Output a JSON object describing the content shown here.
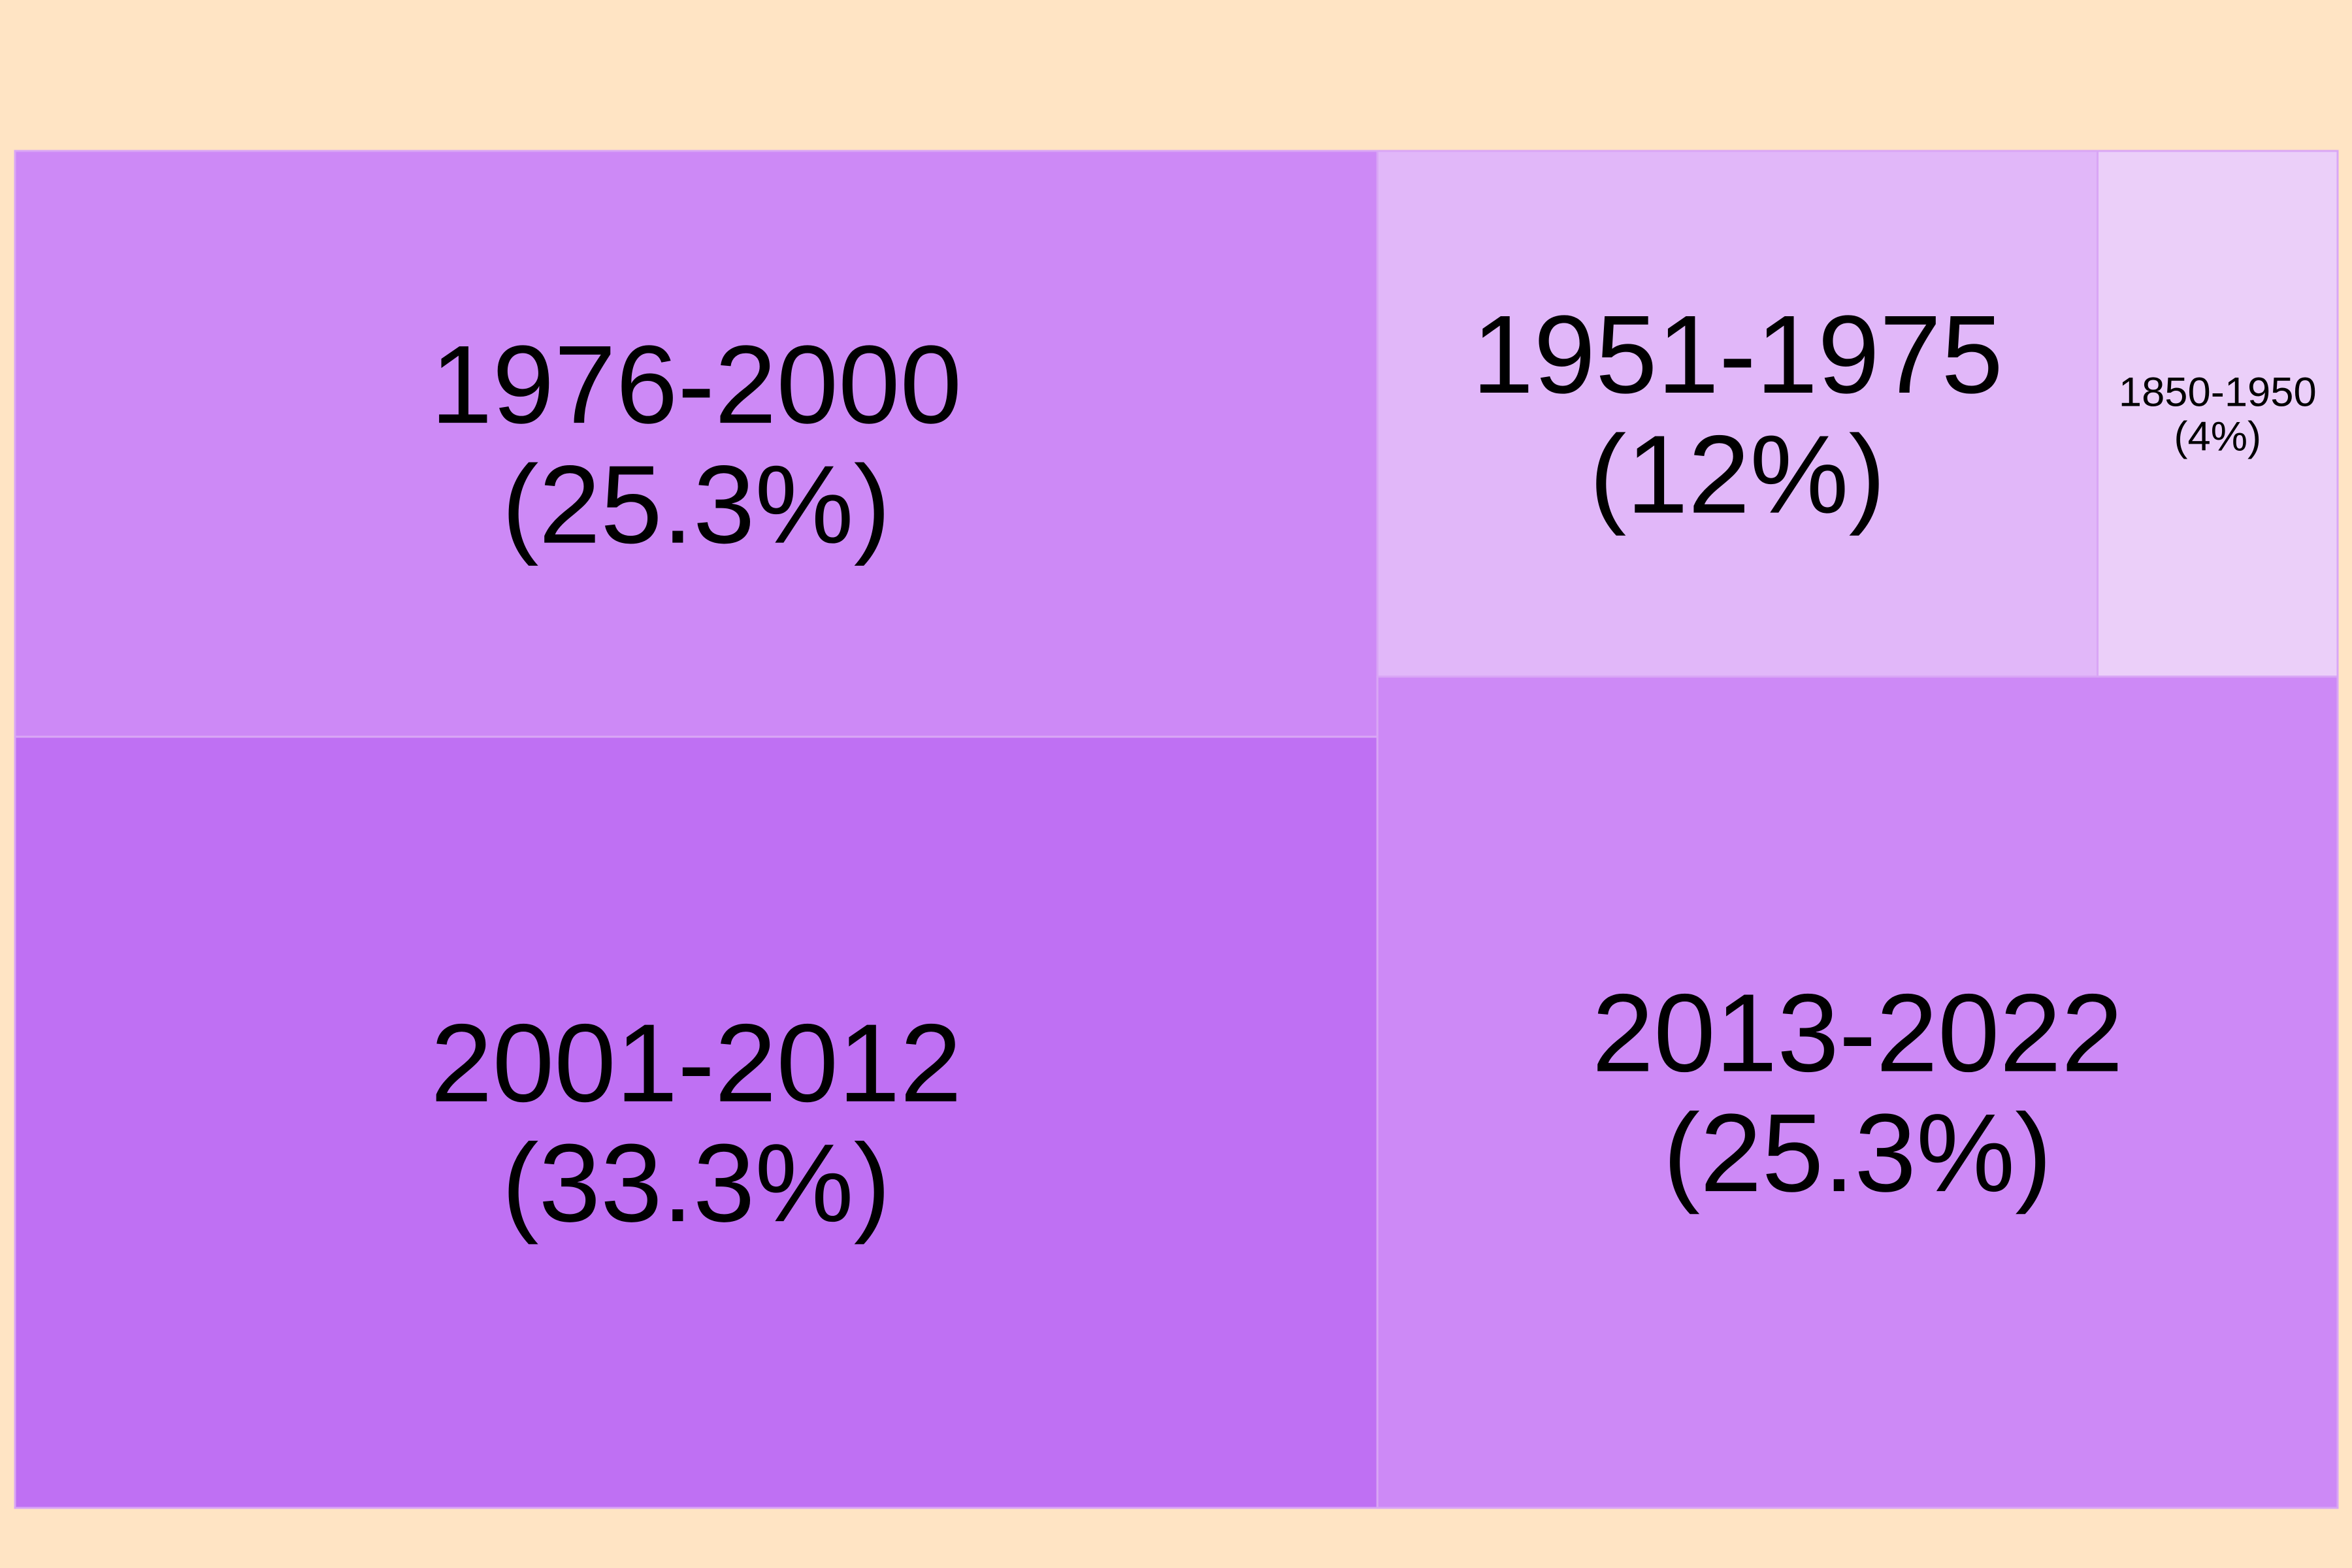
{
  "chart_data": {
    "type": "treemap",
    "title": "",
    "cells": [
      {
        "label": "2001-2012",
        "percent_label": "(33.3%)",
        "value": 33.3,
        "color": "#bf70f3"
      },
      {
        "label": "1976-2000",
        "percent_label": "(25.3%)",
        "value": 25.3,
        "color": "#cd89f6"
      },
      {
        "label": "2013-2022",
        "percent_label": "(25.3%)",
        "value": 25.3,
        "color": "#cd89f6"
      },
      {
        "label": "1951-1975",
        "percent_label": "(12%)",
        "value": 12,
        "color": "#e1b7f9"
      },
      {
        "label": "1850-1950",
        "percent_label": "(4%)",
        "value": 4,
        "color": "#ebcff9"
      }
    ]
  },
  "colors": {
    "background": "#ffe4c4",
    "cell_border": "#d9a6f5",
    "text": "#000000"
  }
}
